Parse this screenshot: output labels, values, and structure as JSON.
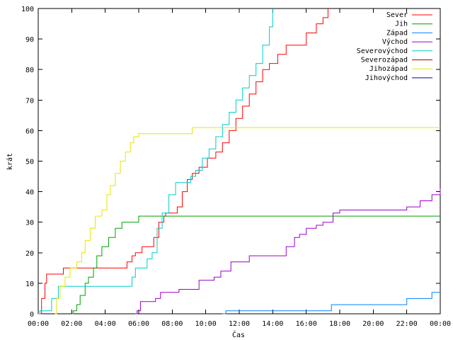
{
  "chart_data": {
    "type": "line",
    "xlabel": "Čas",
    "ylabel": "krát",
    "xlim": [
      0,
      24
    ],
    "ylim": [
      0,
      100
    ],
    "x_ticks": [
      0,
      2,
      4,
      6,
      8,
      10,
      12,
      14,
      16,
      18,
      20,
      22,
      24
    ],
    "x_tick_labels": [
      "00:00",
      "02:00",
      "04:00",
      "06:00",
      "08:00",
      "10:00",
      "12:00",
      "14:00",
      "16:00",
      "18:00",
      "20:00",
      "22:00",
      "00:00"
    ],
    "y_ticks": [
      0,
      10,
      20,
      30,
      40,
      50,
      60,
      70,
      80,
      90,
      100
    ],
    "y_tick_labels": [
      "0",
      "10",
      "20",
      "30",
      "40",
      "50",
      "60",
      "70",
      "80",
      "90",
      "100"
    ],
    "grid": false,
    "legend_position": "top-right",
    "series": [
      {
        "name": "Sever",
        "color": "#ff0000",
        "x": [
          0,
          0.2,
          0.4,
          0.5,
          1.0,
          1.5,
          3.0,
          4.0,
          5.2,
          5.3,
          5.6,
          5.8,
          6.0,
          6.2,
          6.6,
          6.9,
          7.2,
          7.5,
          7.6,
          7.8,
          8.3,
          8.6,
          8.9,
          9.2,
          9.6,
          10.1,
          10.6,
          11.0,
          11.4,
          11.8,
          12.2,
          12.6,
          13.0,
          13.4,
          13.8,
          14.3,
          14.8,
          15.3,
          16.0,
          16.6,
          17.0,
          17.3
        ],
        "y": [
          0,
          5,
          10,
          13,
          13,
          15,
          15,
          15,
          15,
          17,
          19,
          20,
          20,
          22,
          22,
          25,
          30,
          32,
          33,
          33,
          35,
          40,
          44,
          46,
          48,
          51,
          53,
          56,
          60,
          64,
          68,
          72,
          76,
          80,
          82,
          85,
          88,
          88,
          92,
          95,
          97,
          100
        ]
      },
      {
        "name": "Jih",
        "color": "#00a000",
        "x": [
          2.0,
          2.1,
          2.3,
          2.5,
          2.8,
          3.0,
          3.3,
          3.5,
          3.8,
          4.2,
          4.6,
          5.0,
          5.6,
          6.0,
          24
        ],
        "y": [
          0,
          1,
          3,
          6,
          10,
          12,
          15,
          19,
          22,
          25,
          28,
          30,
          30,
          32,
          32
        ]
      },
      {
        "name": "Západ",
        "color": "#0080ff",
        "x": [
          11.0,
          11.2,
          14.0,
          17.3,
          17.5,
          21.6,
          22.0,
          23.5,
          24
        ],
        "y": [
          0,
          1,
          1,
          1,
          3,
          3,
          5,
          7,
          7
        ]
      },
      {
        "name": "Východ",
        "color": "#9900cc",
        "x": [
          5.8,
          5.9,
          6.1,
          7.0,
          7.3,
          8.0,
          8.4,
          9.3,
          9.6,
          10.5,
          10.9,
          11.5,
          12.0,
          12.6,
          14.0,
          14.8,
          15.3,
          15.6,
          16.0,
          16.6,
          17.0,
          17.6,
          18.0,
          20.0,
          21.0,
          22.0,
          22.8,
          23.5,
          24
        ],
        "y": [
          0,
          1,
          4,
          5,
          7,
          7,
          8,
          8,
          11,
          12,
          14,
          17,
          17,
          19,
          19,
          22,
          25,
          26,
          28,
          29,
          30,
          33,
          34,
          34,
          34,
          35,
          37,
          39,
          41
        ]
      },
      {
        "name": "Severovýchod",
        "color": "#00cccc",
        "x": [
          0,
          0.1,
          0.5,
          0.8,
          1.2,
          1.6,
          3.6,
          5.4,
          5.6,
          5.8,
          6.2,
          6.5,
          6.8,
          7.1,
          7.4,
          7.8,
          8.2,
          8.6,
          9.1,
          9.4,
          9.8,
          10.2,
          10.6,
          11.0,
          11.4,
          11.8,
          12.2,
          12.6,
          13.0,
          13.4,
          13.8,
          14.0
        ],
        "y": [
          0,
          1,
          1,
          5,
          9,
          9,
          9,
          9,
          12,
          15,
          15,
          18,
          20,
          28,
          33,
          39,
          43,
          43,
          45,
          47,
          51,
          54,
          58,
          62,
          66,
          70,
          74,
          78,
          82,
          88,
          94,
          100
        ]
      },
      {
        "name": "Severozápad",
        "color": "#b00000",
        "x": [],
        "y": []
      },
      {
        "name": "Jihozápad",
        "color": "#e6e600",
        "x": [
          1.0,
          1.1,
          1.3,
          1.6,
          1.9,
          2.3,
          2.6,
          2.8,
          3.1,
          3.4,
          3.8,
          4.1,
          4.3,
          4.6,
          4.9,
          5.2,
          5.5,
          5.7,
          6.0,
          7.0,
          8.0,
          9.0,
          9.2,
          24
        ],
        "y": [
          0,
          5,
          9,
          12,
          15,
          17,
          20,
          24,
          28,
          32,
          34,
          39,
          42,
          46,
          50,
          53,
          56,
          58,
          59,
          59,
          59,
          59,
          61,
          61
        ]
      },
      {
        "name": "Jihovýchod",
        "color": "#0000a0",
        "x": [],
        "y": []
      }
    ]
  }
}
